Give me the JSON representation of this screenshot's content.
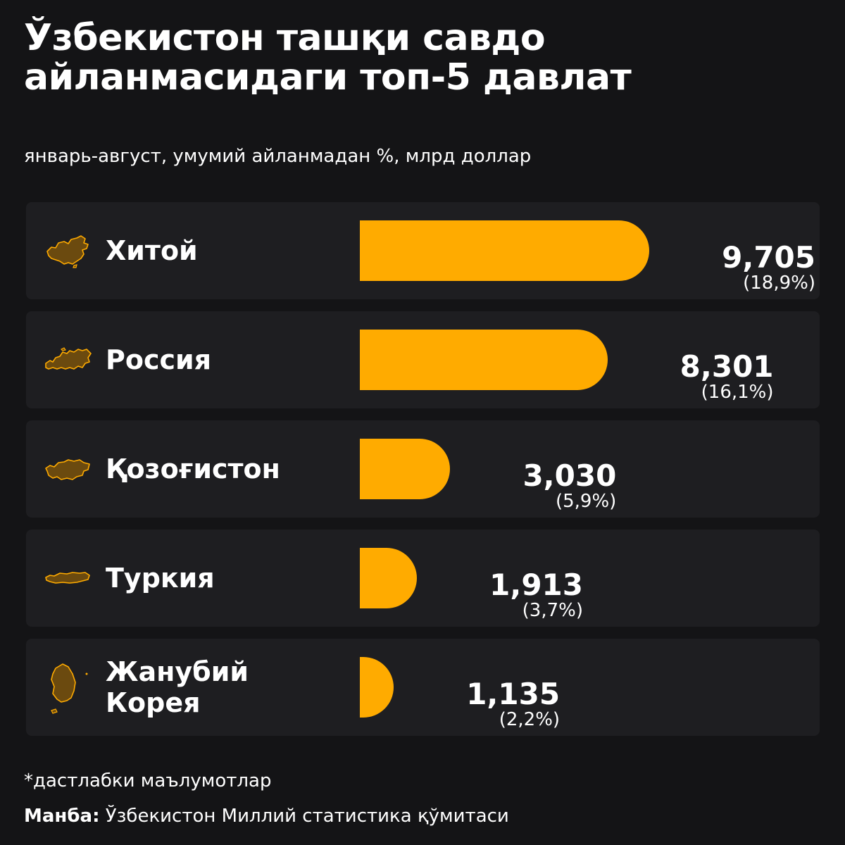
{
  "header": {
    "title_line1": "Ўзбекистон ташқи савдо",
    "title_line2": "айланмасидаги топ-5 давлат",
    "subtitle": "январь-август, умумий айланмадан %, млрд доллар"
  },
  "colors": {
    "background": "#141416",
    "row_background": "#1e1e21",
    "bar": "#ffab00",
    "map_fill": "#6b4a0f",
    "map_outline": "#ffab00",
    "text": "#ffffff"
  },
  "rows": [
    {
      "country": "Хитой",
      "value": "9,705",
      "share": "(18,9%)",
      "icon": "china-map-icon"
    },
    {
      "country": "Россия",
      "value": "8,301",
      "share": "(16,1%)",
      "icon": "russia-map-icon"
    },
    {
      "country": "Қозоғистон",
      "value": "3,030",
      "share": "(5,9%)",
      "icon": "kazakhstan-map-icon"
    },
    {
      "country": "Туркия",
      "value": "1,913",
      "share": "(3,7%)",
      "icon": "turkey-map-icon"
    },
    {
      "country_line1": "Жанубий",
      "country_line2": "Корея",
      "value": "1,135",
      "share": "(2,2%)",
      "icon": "south-korea-map-icon"
    }
  ],
  "chart_data": {
    "type": "bar",
    "orientation": "horizontal",
    "title": "Ўзбекистон ташқи савдо айланмасидаги топ-5 давлат",
    "subtitle": "январь-август, умумий айланмадан %, млрд доллар",
    "categories": [
      "Хитой",
      "Россия",
      "Қозоғистон",
      "Туркия",
      "Жанубий Корея"
    ],
    "values": [
      9.705,
      8.301,
      3.03,
      1.913,
      1.135
    ],
    "shares_percent": [
      18.9,
      16.1,
      5.9,
      3.7,
      2.2
    ],
    "data_labels": [
      "9,705",
      "8,301",
      "3,030",
      "1,913",
      "1,135"
    ],
    "share_labels": [
      "(18,9%)",
      "(16,1%)",
      "(5,9%)",
      "(3,7%)",
      "(2,2%)"
    ],
    "grid": false,
    "legend": "none"
  },
  "footer": {
    "note": "*дастлабки маълумотлар",
    "source_label": "Манба:",
    "source_text": " Ўзбекистон Миллий статистика қўмитаси"
  }
}
